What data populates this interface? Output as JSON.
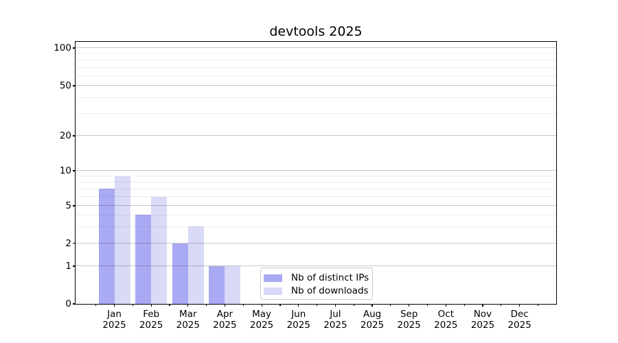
{
  "title": "devtools 2025",
  "chart_data": {
    "type": "bar",
    "title": "devtools 2025",
    "categories": [
      "Jan 2025",
      "Feb 2025",
      "Mar 2025",
      "Apr 2025",
      "May 2025",
      "Jun 2025",
      "Jul 2025",
      "Aug 2025",
      "Sep 2025",
      "Oct 2025",
      "Nov 2025",
      "Dec 2025"
    ],
    "series": [
      {
        "name": "Nb of distinct IPs",
        "color": "#a9a9f4",
        "values": [
          7,
          4,
          2,
          1,
          0,
          0,
          0,
          0,
          0,
          0,
          0,
          0
        ]
      },
      {
        "name": "Nb of downloads",
        "color": "#d9d9f8",
        "values": [
          9,
          6,
          3,
          1,
          0,
          0,
          0,
          0,
          0,
          0,
          0,
          0
        ]
      }
    ],
    "xlabel": "",
    "ylabel": "",
    "yscale": "symlog",
    "yticks": [
      0,
      1,
      2,
      5,
      10,
      20,
      50,
      100
    ],
    "yminorticks": [
      3,
      4,
      6,
      7,
      8,
      9,
      30,
      40,
      60,
      70,
      80,
      90
    ],
    "ylim": [
      0,
      112
    ],
    "grid": "horizontal",
    "legend_position": "lower-center-inside",
    "colors": {
      "background": "#ffffff",
      "grid_major": "#c8c8c8",
      "grid_minor": "#ededed",
      "spine": "#000000",
      "text": "#000000",
      "legend_border": "#c9c9c9"
    }
  }
}
